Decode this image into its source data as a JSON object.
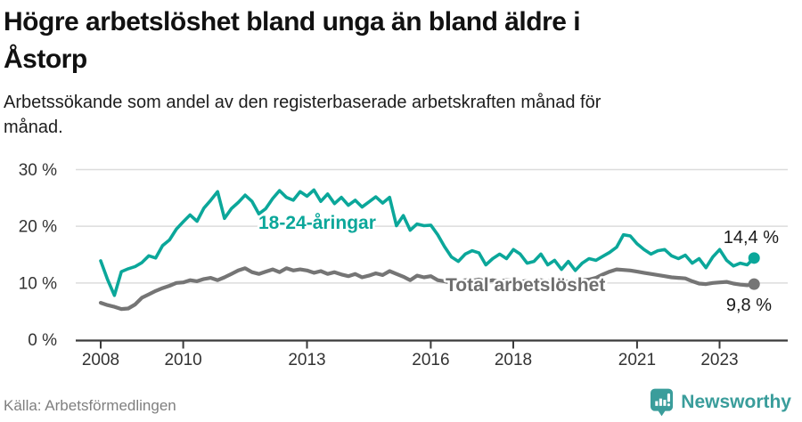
{
  "header": {
    "title_lines": [
      "Högre arbetslöshet bland unga än bland äldre i",
      "Åstorp"
    ],
    "subtitle_lines": [
      "Arbetssökande som andel av den registerbaserade arbetskraften månad för",
      "månad."
    ]
  },
  "footer": {
    "source": "Källa: Arbetsförmedlingen",
    "brand": "Newsworthy"
  },
  "colors": {
    "young_line": "#0ba79a",
    "total_line": "#757575",
    "total_label": "#6e6e6e",
    "grid": "#dcdcdc",
    "axis": "#3a3a3a",
    "axis_text": "#333333",
    "value_text": "#1a1a1a",
    "brand_teal": "#3a9d9b"
  },
  "chart_data": {
    "type": "line",
    "title": "Högre arbetslöshet bland unga än bland äldre i Åstorp",
    "subtitle": "Arbetssökande som andel av den registerbaserade arbetskraften månad för månad.",
    "xlabel": "",
    "ylabel": "",
    "ylim": [
      0,
      32
    ],
    "grid": true,
    "legend_position": "inline-labels",
    "x_start_year": 2008.0,
    "x_step_years": 0.1667,
    "sampling_note": "values estimated at two-month intervals, Jan 2008 - Nov 2023",
    "x_axis": {
      "tick_years": [
        2008,
        2010,
        2013,
        2016,
        2018,
        2021,
        2023
      ],
      "tick_labels": [
        "2008",
        "2010",
        "2013",
        "2016",
        "2018",
        "2021",
        "2023"
      ]
    },
    "y_axis": {
      "ticks": [
        0,
        10,
        20,
        30
      ],
      "tick_labels": [
        "0 %",
        "10 %",
        "20 %",
        "30 %"
      ]
    },
    "series": [
      {
        "name": "18-24-åringar",
        "color": "#0ba79a",
        "end_label": "14,4 %",
        "end_value": 14.4,
        "values": [
          13.9,
          10.6,
          7.8,
          12.0,
          12.5,
          12.9,
          13.6,
          14.8,
          14.4,
          16.6,
          17.6,
          19.5,
          20.8,
          22.0,
          20.9,
          23.2,
          24.6,
          26.1,
          21.4,
          23.1,
          24.2,
          25.5,
          24.4,
          22.2,
          23.1,
          24.9,
          26.3,
          25.1,
          24.6,
          26.1,
          25.3,
          26.4,
          24.4,
          25.7,
          24.0,
          25.1,
          23.7,
          24.6,
          23.4,
          24.3,
          25.2,
          24.1,
          25.1,
          20.1,
          21.9,
          19.3,
          20.4,
          20.1,
          20.2,
          18.5,
          16.4,
          14.6,
          13.8,
          15.1,
          15.7,
          15.3,
          13.2,
          14.3,
          15.1,
          14.3,
          15.9,
          15.1,
          13.5,
          13.8,
          15.1,
          13.2,
          14.0,
          12.4,
          13.8,
          12.2,
          13.5,
          14.3,
          14.0,
          14.7,
          15.4,
          16.3,
          18.5,
          18.3,
          16.9,
          15.9,
          15.1,
          15.7,
          15.9,
          14.8,
          14.3,
          14.9,
          13.5,
          14.3,
          12.7,
          14.6,
          15.9,
          14.0,
          13.0,
          13.5,
          13.2,
          14.4
        ]
      },
      {
        "name": "Total arbetslöshet",
        "color": "#757575",
        "end_label": "9,8 %",
        "end_value": 9.8,
        "values": [
          6.5,
          6.1,
          5.8,
          5.4,
          5.5,
          6.2,
          7.4,
          8.0,
          8.6,
          9.1,
          9.5,
          10.0,
          10.1,
          10.5,
          10.3,
          10.7,
          10.9,
          10.5,
          11.0,
          11.6,
          12.2,
          12.6,
          11.9,
          11.6,
          12.0,
          12.4,
          11.9,
          12.6,
          12.2,
          12.4,
          12.2,
          11.8,
          12.1,
          11.6,
          11.9,
          11.5,
          11.2,
          11.6,
          11.0,
          11.3,
          11.7,
          11.4,
          12.1,
          11.6,
          11.1,
          10.5,
          11.3,
          11.0,
          11.2,
          10.5,
          10.3,
          10.0,
          10.3,
          10.5,
          10.4,
          10.6,
          10.3,
          10.5,
          10.3,
          10.5,
          10.4,
          10.2,
          10.4,
          10.2,
          10.5,
          10.3,
          10.2,
          10.4,
          10.2,
          10.3,
          10.5,
          10.6,
          10.9,
          11.5,
          12.0,
          12.4,
          12.3,
          12.2,
          12.0,
          11.8,
          11.6,
          11.4,
          11.2,
          11.0,
          10.9,
          10.8,
          10.3,
          9.9,
          9.8,
          10.0,
          10.1,
          10.2,
          9.9,
          9.7,
          9.6,
          9.8
        ]
      }
    ]
  }
}
